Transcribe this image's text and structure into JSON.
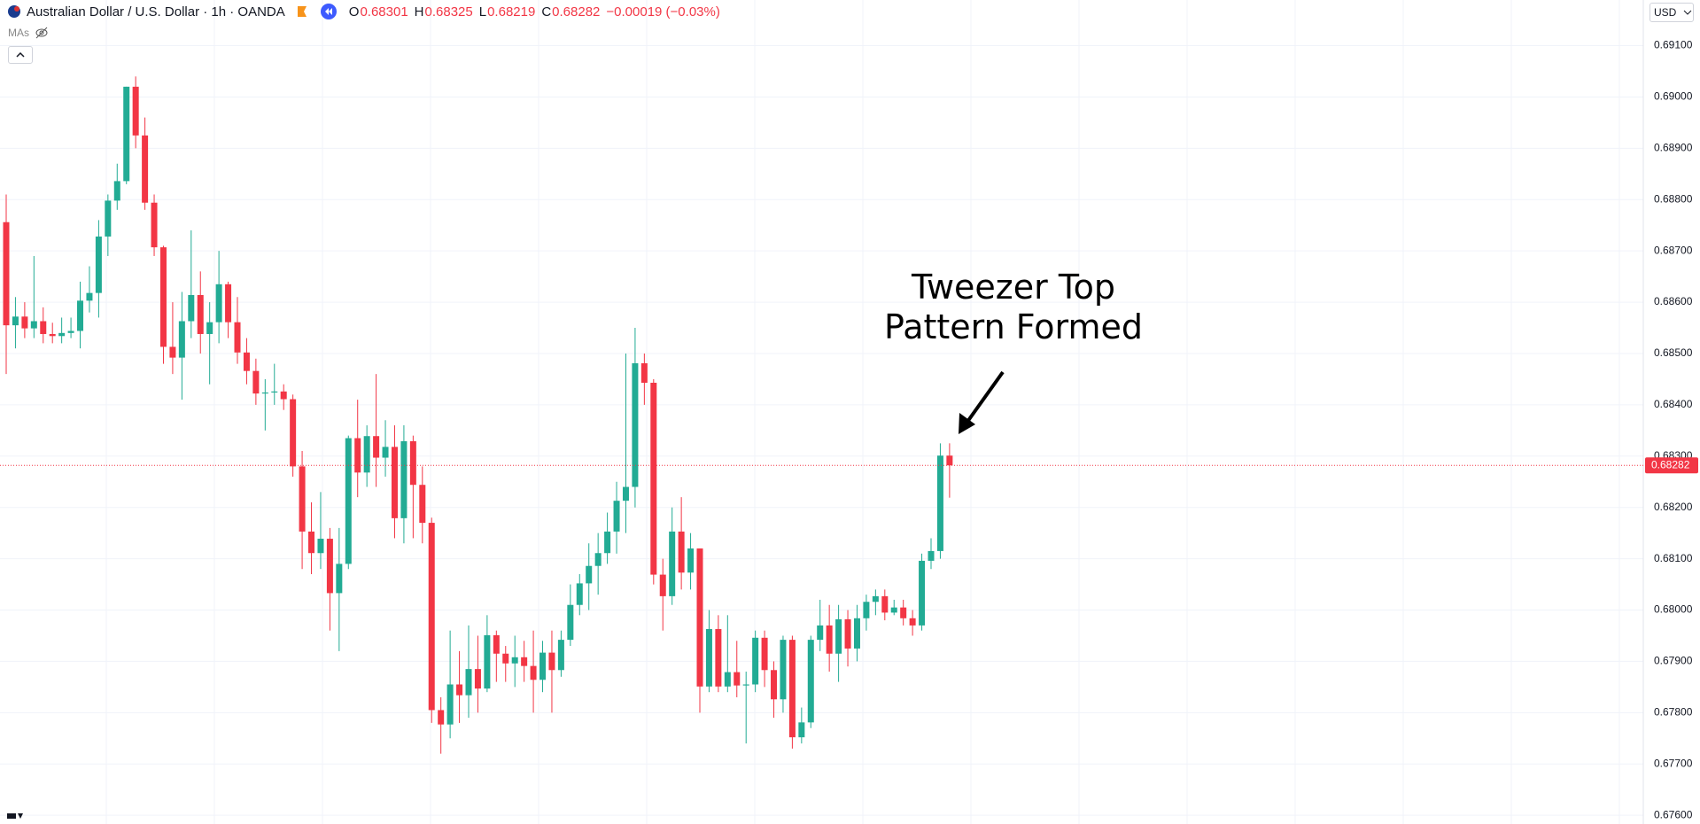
{
  "chart_data": {
    "type": "candlestick",
    "title": "Australian Dollar / U.S. Dollar · 1h · OANDA",
    "ohlc_labels": [
      "O",
      "H",
      "L",
      "C"
    ],
    "change": "−0.00019 (−0.03%)",
    "indicator": "MAs",
    "currency": "USD",
    "annotation": [
      "Tweezer Top",
      "Pattern Formed"
    ],
    "up_color": "#22ab94",
    "down_color": "#f23645",
    "open": [
      0.68756,
      0.68555,
      0.68572,
      0.68549,
      0.68563,
      0.68538,
      0.68534,
      0.6854,
      0.68544,
      0.68603,
      0.68618,
      0.68728,
      0.68798,
      0.68836,
      0.6902,
      0.68925,
      0.68794,
      0.68707,
      0.68513,
      0.68492,
      0.68563,
      0.68614,
      0.68538,
      0.68561,
      0.68635,
      0.68561,
      0.68502,
      0.68466,
      0.68422,
      0.68424,
      0.68426,
      0.68411,
      0.6828,
      0.68153,
      0.68111,
      0.68139,
      0.68033,
      0.6809,
      0.68335,
      0.68268,
      0.68339,
      0.68297,
      0.68318,
      0.68179,
      0.68329,
      0.68244,
      0.6817,
      0.67805,
      0.67777,
      0.67855,
      0.67834,
      0.67885,
      0.67847,
      0.67951,
      0.67915,
      0.67896,
      0.67908,
      0.67891,
      0.67864,
      0.67917,
      0.67883,
      0.67942,
      0.6801,
      0.68052,
      0.68086,
      0.68111,
      0.68153,
      0.68213,
      0.6824,
      0.68481,
      0.68443,
      0.68069,
      0.68027,
      0.68153,
      0.68073,
      0.6812,
      0.67851,
      0.67963,
      0.67851,
      0.67879,
      0.67853,
      0.67855,
      0.67946,
      0.67883,
      0.67826,
      0.67942,
      0.67752,
      0.67781,
      0.67942,
      0.6797,
      0.67915,
      0.67982,
      0.67925,
      0.67984,
      0.68016,
      0.68027,
      0.67995,
      0.68005,
      0.67984,
      0.6797,
      0.68096,
      0.68115,
      0.68301
    ],
    "high": [
      0.6881,
      0.6861,
      0.686,
      0.6869,
      0.6859,
      0.6856,
      0.6857,
      0.6857,
      0.6864,
      0.6867,
      0.6876,
      0.6881,
      0.6887,
      0.6902,
      0.6904,
      0.6896,
      0.6881,
      0.6871,
      0.686,
      0.6862,
      0.6874,
      0.6866,
      0.686,
      0.687,
      0.6864,
      0.6861,
      0.6853,
      0.6849,
      0.6845,
      0.6848,
      0.6844,
      0.6842,
      0.6831,
      0.6821,
      0.6823,
      0.6816,
      0.6816,
      0.6834,
      0.6841,
      0.6836,
      0.6846,
      0.6837,
      0.6836,
      0.6836,
      0.6834,
      0.6828,
      0.6818,
      0.6783,
      0.6796,
      0.6792,
      0.6797,
      0.6795,
      0.6799,
      0.6796,
      0.6793,
      0.6795,
      0.6794,
      0.6796,
      0.6794,
      0.6796,
      0.6796,
      0.6805,
      0.6807,
      0.6813,
      0.6815,
      0.6819,
      0.6825,
      0.685,
      0.6855,
      0.685,
      0.6845,
      0.681,
      0.682,
      0.6822,
      0.6815,
      0.6812,
      0.68,
      0.6799,
      0.6799,
      0.6794,
      0.6788,
      0.6796,
      0.6796,
      0.679,
      0.6795,
      0.6795,
      0.6781,
      0.6795,
      0.6802,
      0.6801,
      0.6801,
      0.68,
      0.6801,
      0.6803,
      0.6804,
      0.6804,
      0.6802,
      0.6802,
      0.68,
      0.6811,
      0.6814,
      0.68325,
      0.68325
    ],
    "low": [
      0.6846,
      0.6851,
      0.6853,
      0.6853,
      0.6852,
      0.6852,
      0.6852,
      0.6853,
      0.6851,
      0.6858,
      0.6857,
      0.6869,
      0.6878,
      0.6883,
      0.689,
      0.6878,
      0.6869,
      0.6848,
      0.6846,
      0.6841,
      0.6853,
      0.685,
      0.6844,
      0.6852,
      0.6853,
      0.6848,
      0.6844,
      0.684,
      0.6835,
      0.684,
      0.6839,
      0.6826,
      0.6808,
      0.6807,
      0.6808,
      0.6796,
      0.6792,
      0.6808,
      0.6822,
      0.6824,
      0.6824,
      0.6826,
      0.6814,
      0.6813,
      0.6814,
      0.6813,
      0.6778,
      0.6772,
      0.6775,
      0.6778,
      0.6779,
      0.678,
      0.6784,
      0.6786,
      0.6786,
      0.6785,
      0.6786,
      0.678,
      0.6784,
      0.678,
      0.6787,
      0.6793,
      0.6799,
      0.68,
      0.6803,
      0.6809,
      0.6811,
      0.6815,
      0.682,
      0.684,
      0.6805,
      0.6796,
      0.6801,
      0.6804,
      0.6804,
      0.678,
      0.6784,
      0.6784,
      0.6784,
      0.6783,
      0.6774,
      0.6784,
      0.6785,
      0.6779,
      0.678,
      0.6773,
      0.6774,
      0.6777,
      0.6792,
      0.6788,
      0.6786,
      0.6789,
      0.679,
      0.6796,
      0.6799,
      0.6798,
      0.6799,
      0.6797,
      0.6795,
      0.6796,
      0.6808,
      0.681,
      0.68219
    ],
    "close": [
      0.68555,
      0.68572,
      0.68549,
      0.68563,
      0.68538,
      0.68534,
      0.6854,
      0.68544,
      0.68603,
      0.68618,
      0.68728,
      0.68798,
      0.68836,
      0.6902,
      0.68925,
      0.68794,
      0.68707,
      0.68513,
      0.68492,
      0.68563,
      0.68614,
      0.68538,
      0.68561,
      0.68635,
      0.68561,
      0.68502,
      0.68466,
      0.68422,
      0.68424,
      0.68426,
      0.68411,
      0.6828,
      0.68153,
      0.68111,
      0.68139,
      0.68033,
      0.6809,
      0.68335,
      0.68268,
      0.68339,
      0.68297,
      0.68318,
      0.68179,
      0.68329,
      0.68244,
      0.6817,
      0.67805,
      0.67777,
      0.67855,
      0.67834,
      0.67885,
      0.67847,
      0.67951,
      0.67915,
      0.67896,
      0.67908,
      0.67891,
      0.67864,
      0.67917,
      0.67883,
      0.67942,
      0.6801,
      0.68052,
      0.68086,
      0.68111,
      0.68153,
      0.68213,
      0.6824,
      0.68481,
      0.68443,
      0.68069,
      0.68027,
      0.68153,
      0.68073,
      0.6812,
      0.67851,
      0.67963,
      0.67851,
      0.67879,
      0.67853,
      0.67855,
      0.67946,
      0.67883,
      0.67826,
      0.67942,
      0.67752,
      0.67781,
      0.67942,
      0.6797,
      0.67915,
      0.67982,
      0.67925,
      0.67984,
      0.68016,
      0.68027,
      0.67995,
      0.68005,
      0.67984,
      0.6797,
      0.68096,
      0.68115,
      0.68301,
      0.68282
    ],
    "ylim": [
      0.67583,
      0.69189
    ],
    "yticks": [
      {
        "value": 0.676,
        "label": "0.67600"
      },
      {
        "value": 0.677,
        "label": "0.67700"
      },
      {
        "value": 0.678,
        "label": "0.67800"
      },
      {
        "value": 0.679,
        "label": "0.67900"
      },
      {
        "value": 0.68,
        "label": "0.68000"
      },
      {
        "value": 0.681,
        "label": "0.68100"
      },
      {
        "value": 0.682,
        "label": "0.68200"
      },
      {
        "value": 0.683,
        "label": "0.68300"
      },
      {
        "value": 0.684,
        "label": "0.68400"
      },
      {
        "value": 0.685,
        "label": "0.68500"
      },
      {
        "value": 0.686,
        "label": "0.68600"
      },
      {
        "value": 0.687,
        "label": "0.68700"
      },
      {
        "value": 0.688,
        "label": "0.68800"
      },
      {
        "value": 0.689,
        "label": "0.68900"
      },
      {
        "value": 0.69,
        "label": "0.69000"
      },
      {
        "value": 0.691,
        "label": "0.69100"
      }
    ],
    "grid": true
  }
}
